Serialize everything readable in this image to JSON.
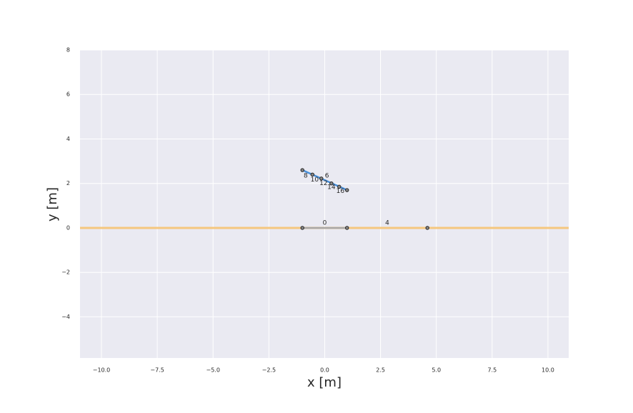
{
  "chart_data": {
    "type": "line",
    "xlabel": "x [m]",
    "ylabel": "y [m]",
    "xlim": [
      -10.96,
      10.93
    ],
    "ylim": [
      -5.85,
      8
    ],
    "xticks": [
      {
        "value": -10,
        "label": "−10.0"
      },
      {
        "value": -7.5,
        "label": "−7.5"
      },
      {
        "value": -5,
        "label": "−5.0"
      },
      {
        "value": -2.5,
        "label": "−2.5"
      },
      {
        "value": 0,
        "label": "0.0"
      },
      2.5,
      {
        "value": 5,
        "label": "5.0"
      },
      7.5,
      {
        "value": 10,
        "label": "10.0"
      }
    ],
    "yticks": [
      {
        "value": -4,
        "label": "−4"
      },
      {
        "value": -2,
        "label": "−2"
      },
      0,
      2,
      4,
      6,
      8
    ],
    "grid": true,
    "series": [
      {
        "color": "#f5c77e",
        "x": [
          -10.96,
          10.93
        ],
        "values": [
          0,
          0
        ]
      },
      {
        "color": "#a8a8a8",
        "x": [
          -1,
          1
        ],
        "values": [
          0,
          0
        ]
      },
      {
        "color": "#4a90d9",
        "x": [
          -1,
          1
        ],
        "values": [
          2.6,
          1.7
        ]
      }
    ],
    "points": {
      "color": "#222222",
      "x": [
        -1,
        1,
        4.6,
        -1,
        -0.55,
        -0.15,
        0.3,
        0.65,
        1
      ],
      "values": [
        0,
        0,
        0,
        2.6,
        2.4,
        2.22,
        2.0,
        1.85,
        1.7
      ]
    },
    "annotations": [
      {
        "text": "0",
        "x": 0,
        "y": 0.22
      },
      {
        "text": "4",
        "x": 2.8,
        "y": 0.22
      },
      {
        "text": "6",
        "x": 0.1,
        "y": 2.35
      },
      {
        "text": "8",
        "x": -0.85,
        "y": 2.35
      },
      {
        "text": "10",
        "x": -0.45,
        "y": 2.17
      },
      {
        "text": "12",
        "x": -0.05,
        "y": 2.0
      },
      {
        "text": "14",
        "x": 0.3,
        "y": 1.83
      },
      {
        "text": "16",
        "x": 0.7,
        "y": 1.65
      }
    ]
  }
}
